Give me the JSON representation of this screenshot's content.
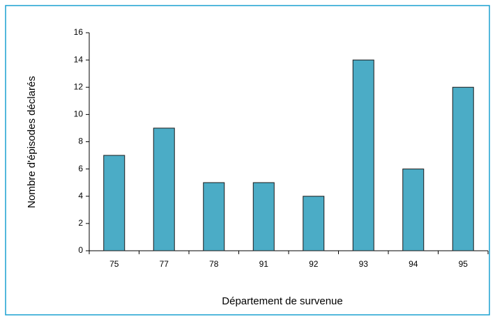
{
  "chart_data": {
    "type": "bar",
    "x_label": "Département de survenue",
    "y_label": "Nombre d'épisodes déclarés",
    "categories": [
      "75",
      "77",
      "78",
      "91",
      "92",
      "93",
      "94",
      "95"
    ],
    "values": [
      7,
      9,
      5,
      5,
      4,
      14,
      6,
      12
    ],
    "color": "#4bacc6",
    "ylim": [
      0,
      16
    ],
    "yticks": [
      0,
      2,
      4,
      6,
      8,
      10,
      12,
      14,
      16
    ],
    "grid": false
  }
}
